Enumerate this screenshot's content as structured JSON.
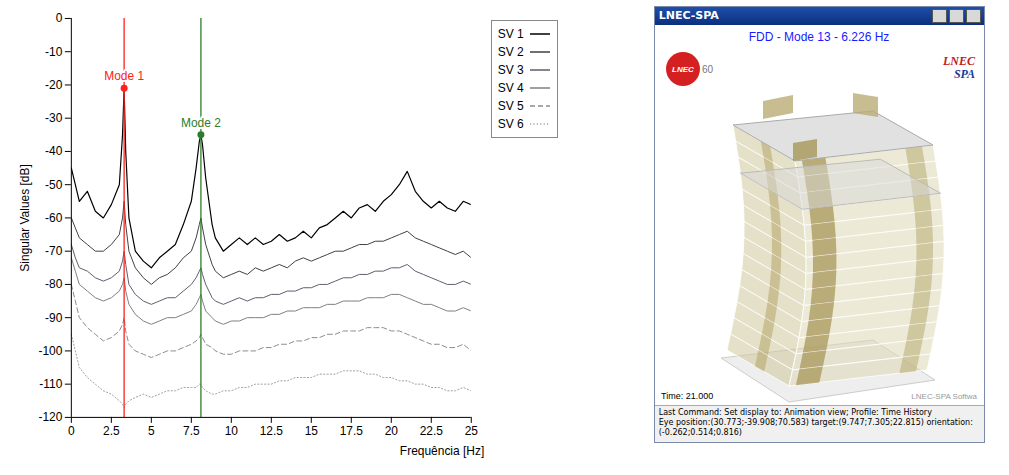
{
  "chart_data": {
    "type": "line",
    "x_label": "Frequência [Hz]",
    "y_label": "Singular Values [dB]",
    "x": [
      0,
      0.25,
      0.5,
      1,
      1.5,
      2,
      2.5,
      3,
      3.2,
      3.3,
      3.4,
      3.6,
      4,
      4.5,
      5,
      5.5,
      6,
      6.5,
      7,
      7.5,
      7.8,
      8,
      8.1,
      8.2,
      8.4,
      8.8,
      9,
      9.5,
      10,
      10.5,
      11,
      11.5,
      12,
      12.5,
      13,
      13.5,
      14,
      14.5,
      15,
      15.5,
      16,
      16.5,
      17,
      17.5,
      18,
      18.5,
      19,
      19.5,
      20,
      20.5,
      21,
      21.5,
      22,
      22.5,
      23,
      23.5,
      24,
      24.5,
      25
    ],
    "series": [
      {
        "name": "SV 1",
        "color": "#000000",
        "line_style": "solid",
        "values": [
          -45,
          -50,
          -55,
          -52,
          -58,
          -60,
          -56,
          -50,
          -35,
          -21,
          -40,
          -60,
          -70,
          -73,
          -75,
          -72,
          -70,
          -68,
          -62,
          -55,
          -45,
          -37,
          -35,
          -38,
          -48,
          -62,
          -66,
          -70,
          -68,
          -66,
          -68,
          -66,
          -68,
          -67,
          -65,
          -67,
          -66,
          -64,
          -66,
          -63,
          -62,
          -60,
          -58,
          -60,
          -57,
          -56,
          -58,
          -55,
          -53,
          -50,
          -46,
          -52,
          -55,
          -57,
          -55,
          -57,
          -58,
          -55,
          -56
        ]
      },
      {
        "name": "SV 2",
        "color": "#404040",
        "line_style": "solid",
        "values": [
          -60,
          -63,
          -66,
          -68,
          -70,
          -70,
          -68,
          -65,
          -60,
          -55,
          -62,
          -70,
          -75,
          -78,
          -80,
          -78,
          -77,
          -75,
          -72,
          -70,
          -66,
          -62,
          -60,
          -63,
          -68,
          -74,
          -76,
          -78,
          -77,
          -76,
          -77,
          -75,
          -76,
          -75,
          -74,
          -75,
          -73,
          -72,
          -73,
          -72,
          -71,
          -70,
          -70,
          -69,
          -68,
          -68,
          -67,
          -67,
          -66,
          -65,
          -64,
          -66,
          -67,
          -68,
          -69,
          -70,
          -71,
          -70,
          -72
        ]
      },
      {
        "name": "SV 3",
        "color": "#5e5e6e",
        "line_style": "solid",
        "values": [
          -68,
          -72,
          -75,
          -76,
          -78,
          -79,
          -78,
          -76,
          -73,
          -70,
          -74,
          -80,
          -83,
          -85,
          -86,
          -85,
          -84,
          -84,
          -82,
          -80,
          -78,
          -76,
          -75,
          -77,
          -80,
          -84,
          -85,
          -86,
          -85,
          -84,
          -85,
          -84,
          -84,
          -83,
          -83,
          -82,
          -82,
          -81,
          -81,
          -80,
          -80,
          -79,
          -78,
          -78,
          -77,
          -77,
          -76,
          -76,
          -75,
          -75,
          -74,
          -76,
          -77,
          -78,
          -79,
          -80,
          -80,
          -79,
          -80
        ]
      },
      {
        "name": "SV 4",
        "color": "#808080",
        "line_style": "solid",
        "values": [
          -72,
          -76,
          -80,
          -82,
          -84,
          -85,
          -84,
          -82,
          -80,
          -78,
          -82,
          -86,
          -89,
          -91,
          -92,
          -91,
          -90,
          -90,
          -89,
          -88,
          -86,
          -84,
          -83,
          -85,
          -88,
          -90,
          -91,
          -92,
          -91,
          -91,
          -90,
          -90,
          -90,
          -89,
          -89,
          -88,
          -88,
          -87,
          -87,
          -87,
          -86,
          -86,
          -85,
          -85,
          -85,
          -84,
          -84,
          -84,
          -83,
          -83,
          -84,
          -85,
          -86,
          -86,
          -87,
          -88,
          -88,
          -87,
          -88
        ]
      },
      {
        "name": "SV 5",
        "color": "#8c8c8c",
        "line_style": "dashed",
        "values": [
          -80,
          -85,
          -90,
          -93,
          -95,
          -97,
          -96,
          -94,
          -92,
          -90,
          -94,
          -98,
          -100,
          -101,
          -102,
          -101,
          -100,
          -100,
          -99,
          -98,
          -97,
          -96,
          -95,
          -96,
          -98,
          -99,
          -100,
          -101,
          -101,
          -100,
          -100,
          -100,
          -99,
          -99,
          -98,
          -98,
          -97,
          -97,
          -96,
          -96,
          -95,
          -95,
          -94,
          -94,
          -94,
          -93,
          -93,
          -93,
          -94,
          -94,
          -95,
          -96,
          -97,
          -98,
          -98,
          -99,
          -99,
          -98,
          -100
        ]
      },
      {
        "name": "SV 6",
        "color": "#a0a0a0",
        "line_style": "dotted",
        "values": [
          -95,
          -100,
          -105,
          -108,
          -110,
          -112,
          -113,
          -115,
          -116,
          -117,
          -116,
          -115,
          -114,
          -113,
          -114,
          -113,
          -112,
          -112,
          -111,
          -111,
          -111,
          -110,
          -110,
          -111,
          -112,
          -113,
          -113,
          -112,
          -112,
          -111,
          -111,
          -110,
          -110,
          -110,
          -109,
          -109,
          -108,
          -108,
          -108,
          -107,
          -107,
          -107,
          -106,
          -106,
          -106,
          -107,
          -107,
          -108,
          -108,
          -109,
          -109,
          -110,
          -110,
          -111,
          -111,
          -112,
          -112,
          -111,
          -112
        ]
      }
    ],
    "annotations": [
      {
        "label": "Mode 1",
        "x": 3.3,
        "y": -21,
        "color": "#ff2020"
      },
      {
        "label": "Mode 2",
        "x": 8.1,
        "y": -35,
        "color": "#2e7d2e"
      }
    ],
    "xlim": [
      0,
      25
    ],
    "ylim": [
      -120,
      0
    ],
    "xticks": [
      0,
      2.5,
      5,
      7.5,
      10,
      12.5,
      15,
      17.5,
      20,
      22.5,
      25
    ],
    "yticks": [
      0,
      -10,
      -20,
      -30,
      -40,
      -50,
      -60,
      -70,
      -80,
      -90,
      -100,
      -110,
      -120
    ],
    "grid": false,
    "legend": "right"
  },
  "screenshot": {
    "window_title": "LNEC-SPA",
    "heading": "FDD - Mode 13 - 6.226 Hz",
    "logo_left": [
      "LNEC",
      "60"
    ],
    "logo_right": [
      "LNEC",
      "SPA"
    ],
    "time": "Time: 21.000",
    "watermark": "LNEC-SPA Softwa",
    "status_lines": [
      "Last Command: Set display to: Animation view; Profile: Time History",
      "Eye position:(30.773;-39.908;70.583) target:(9.747;7.305;22.815) orientation:(-0.262;0.514;0.816)"
    ]
  }
}
